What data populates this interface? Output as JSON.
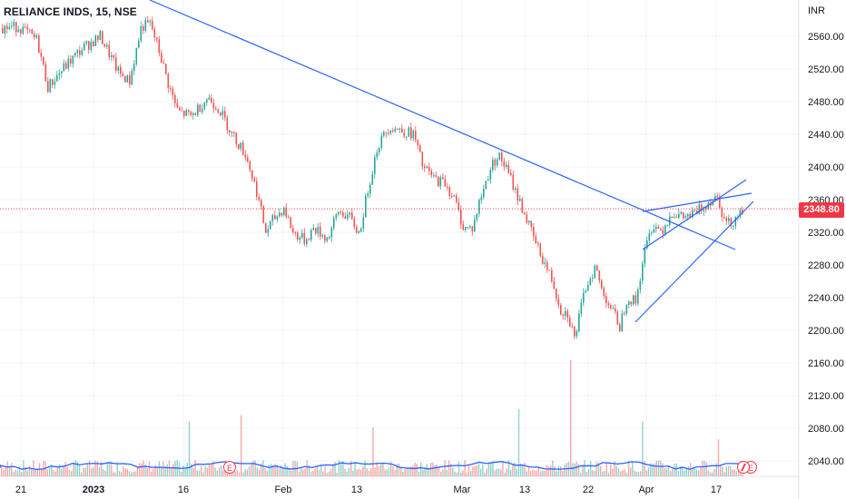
{
  "header": {
    "symbol_title": "RELIANCE INDS, 15, NSE",
    "currency": "INR"
  },
  "price_badge": "2348.80",
  "event_markers": [
    "E",
    "E",
    "E"
  ],
  "colors": {
    "up": "#26a69a",
    "down": "#ef5350",
    "trendline": "#2962ff",
    "volume_ma": "#2962ff",
    "price_line": "#f23645",
    "grid": "#f0f3fa"
  },
  "chart_data": {
    "type": "candlestick",
    "title": "RELIANCE INDS, 15, NSE",
    "ylabel": "INR",
    "ylim": [
      2025,
      2590
    ],
    "grid": true,
    "x_ticks": [
      "21",
      "2023",
      "16",
      "Feb",
      "13",
      "Mar",
      "13",
      "22",
      "Apr",
      "17"
    ],
    "y_ticks": [
      2040,
      2080,
      2120,
      2160,
      2200,
      2240,
      2280,
      2320,
      2360,
      2400,
      2440,
      2480,
      2520,
      2560
    ],
    "last_price": 2348.8,
    "price_path": [
      [
        0,
        2570
      ],
      [
        20,
        2572
      ],
      [
        40,
        2555
      ],
      [
        52,
        2498
      ],
      [
        70,
        2522
      ],
      [
        90,
        2545
      ],
      [
        110,
        2560
      ],
      [
        130,
        2515
      ],
      [
        142,
        2505
      ],
      [
        155,
        2572
      ],
      [
        165,
        2575
      ],
      [
        175,
        2540
      ],
      [
        185,
        2500
      ],
      [
        195,
        2468
      ],
      [
        210,
        2462
      ],
      [
        228,
        2485
      ],
      [
        240,
        2472
      ],
      [
        255,
        2440
      ],
      [
        270,
        2415
      ],
      [
        282,
        2370
      ],
      [
        292,
        2320
      ],
      [
        300,
        2335
      ],
      [
        312,
        2350
      ],
      [
        322,
        2320
      ],
      [
        335,
        2310
      ],
      [
        345,
        2325
      ],
      [
        360,
        2312
      ],
      [
        372,
        2345
      ],
      [
        383,
        2340
      ],
      [
        395,
        2318
      ],
      [
        405,
        2375
      ],
      [
        415,
        2425
      ],
      [
        428,
        2450
      ],
      [
        440,
        2445
      ],
      [
        455,
        2440
      ],
      [
        465,
        2400
      ],
      [
        478,
        2385
      ],
      [
        490,
        2380
      ],
      [
        500,
        2360
      ],
      [
        510,
        2325
      ],
      [
        520,
        2325
      ],
      [
        528,
        2360
      ],
      [
        540,
        2400
      ],
      [
        548,
        2415
      ],
      [
        555,
        2402
      ],
      [
        562,
        2385
      ],
      [
        570,
        2362
      ],
      [
        578,
        2340
      ],
      [
        588,
        2310
      ],
      [
        598,
        2285
      ],
      [
        608,
        2260
      ],
      [
        617,
        2225
      ],
      [
        625,
        2220
      ],
      [
        632,
        2190
      ],
      [
        638,
        2220
      ],
      [
        645,
        2255
      ],
      [
        655,
        2278
      ],
      [
        662,
        2250
      ],
      [
        672,
        2228
      ],
      [
        682,
        2205
      ],
      [
        690,
        2240
      ],
      [
        700,
        2235
      ],
      [
        708,
        2290
      ],
      [
        718,
        2330
      ],
      [
        728,
        2322
      ],
      [
        740,
        2345
      ],
      [
        750,
        2338
      ],
      [
        760,
        2340
      ],
      [
        770,
        2348
      ],
      [
        780,
        2358
      ],
      [
        790,
        2365
      ],
      [
        797,
        2335
      ],
      [
        804,
        2330
      ],
      [
        812,
        2342
      ],
      [
        818,
        2348
      ]
    ],
    "volume_spikes": [
      [
        207,
        0.45
      ],
      [
        265,
        0.5
      ],
      [
        410,
        0.4
      ],
      [
        570,
        0.55
      ],
      [
        629,
        0.95
      ],
      [
        708,
        0.45
      ],
      [
        790,
        0.3
      ]
    ]
  }
}
